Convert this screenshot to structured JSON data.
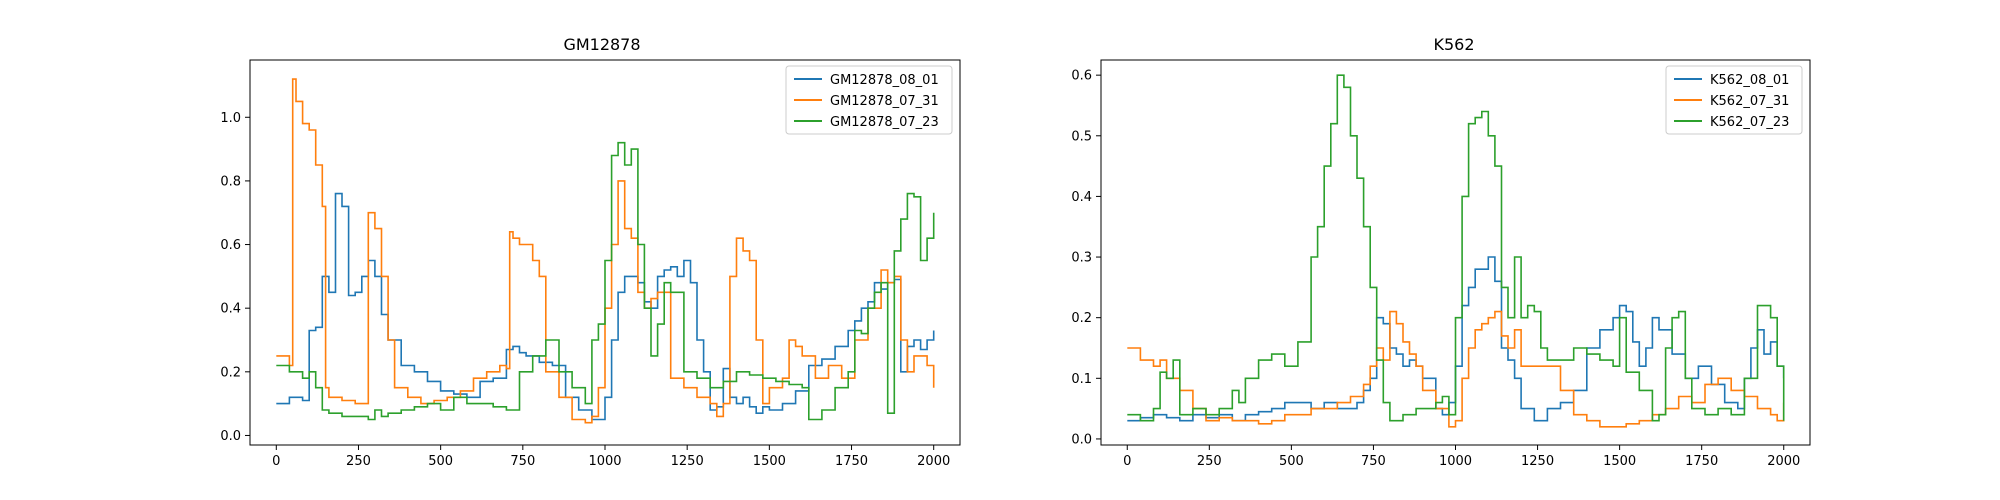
{
  "chart_data": [
    {
      "type": "line",
      "title": "GM12878",
      "xlabel": "",
      "ylabel": "",
      "xlim": [
        -80,
        2080
      ],
      "ylim": [
        -0.03,
        1.18
      ],
      "xticks": [
        0,
        250,
        500,
        750,
        1000,
        1250,
        1500,
        1750,
        2000
      ],
      "xtick_labels": [
        "0",
        "250",
        "500",
        "750",
        "1000",
        "1250",
        "1500",
        "1750",
        "2000"
      ],
      "yticks": [
        0.0,
        0.2,
        0.4,
        0.6,
        0.8,
        1.0
      ],
      "ytick_labels": [
        "0.0",
        "0.2",
        "0.4",
        "0.6",
        "0.8",
        "1.0"
      ],
      "grid": false,
      "legend_position": "top-right",
      "series": [
        {
          "name": "GM12878_08_01",
          "color": "#1f77b4",
          "x": [
            0,
            40,
            80,
            100,
            120,
            140,
            160,
            180,
            200,
            220,
            240,
            260,
            280,
            300,
            320,
            340,
            380,
            420,
            460,
            500,
            540,
            580,
            620,
            660,
            700,
            720,
            740,
            760,
            800,
            840,
            880,
            920,
            960,
            980,
            1000,
            1020,
            1040,
            1060,
            1080,
            1100,
            1120,
            1140,
            1160,
            1180,
            1200,
            1220,
            1240,
            1260,
            1280,
            1300,
            1320,
            1340,
            1360,
            1380,
            1400,
            1420,
            1440,
            1460,
            1480,
            1500,
            1540,
            1580,
            1620,
            1660,
            1700,
            1740,
            1760,
            1780,
            1800,
            1820,
            1840,
            1860,
            1880,
            1900,
            1920,
            1940,
            1960,
            1980,
            2000
          ],
          "y": [
            0.1,
            0.12,
            0.11,
            0.33,
            0.34,
            0.5,
            0.45,
            0.76,
            0.72,
            0.44,
            0.45,
            0.5,
            0.55,
            0.5,
            0.38,
            0.3,
            0.22,
            0.2,
            0.17,
            0.14,
            0.13,
            0.12,
            0.17,
            0.18,
            0.27,
            0.28,
            0.26,
            0.25,
            0.23,
            0.22,
            0.12,
            0.08,
            0.05,
            0.05,
            0.12,
            0.3,
            0.45,
            0.5,
            0.5,
            0.48,
            0.42,
            0.4,
            0.5,
            0.52,
            0.53,
            0.5,
            0.55,
            0.48,
            0.3,
            0.2,
            0.08,
            0.09,
            0.21,
            0.12,
            0.1,
            0.12,
            0.09,
            0.07,
            0.09,
            0.08,
            0.1,
            0.14,
            0.22,
            0.24,
            0.28,
            0.33,
            0.36,
            0.4,
            0.42,
            0.48,
            0.46,
            0.48,
            0.49,
            0.2,
            0.28,
            0.3,
            0.27,
            0.3,
            0.33
          ]
        },
        {
          "name": "GM12878_07_31",
          "color": "#ff7f0e",
          "x": [
            0,
            40,
            50,
            60,
            80,
            100,
            120,
            140,
            150,
            160,
            200,
            240,
            270,
            280,
            300,
            320,
            340,
            360,
            400,
            440,
            480,
            520,
            560,
            600,
            640,
            680,
            700,
            710,
            720,
            740,
            760,
            780,
            800,
            820,
            860,
            900,
            940,
            960,
            980,
            1000,
            1020,
            1040,
            1060,
            1080,
            1100,
            1120,
            1140,
            1160,
            1200,
            1240,
            1280,
            1320,
            1340,
            1360,
            1380,
            1400,
            1420,
            1440,
            1460,
            1480,
            1500,
            1540,
            1560,
            1580,
            1600,
            1640,
            1680,
            1720,
            1760,
            1800,
            1840,
            1860,
            1880,
            1900,
            1920,
            1940,
            1960,
            1980,
            2000
          ],
          "y": [
            0.25,
            0.22,
            1.12,
            1.05,
            0.98,
            0.96,
            0.85,
            0.72,
            0.15,
            0.12,
            0.11,
            0.1,
            0.1,
            0.7,
            0.65,
            0.5,
            0.3,
            0.15,
            0.12,
            0.1,
            0.11,
            0.12,
            0.14,
            0.18,
            0.2,
            0.22,
            0.21,
            0.64,
            0.62,
            0.6,
            0.6,
            0.55,
            0.5,
            0.2,
            0.12,
            0.05,
            0.04,
            0.06,
            0.15,
            0.4,
            0.6,
            0.8,
            0.65,
            0.62,
            0.45,
            0.4,
            0.43,
            0.45,
            0.18,
            0.15,
            0.12,
            0.1,
            0.06,
            0.1,
            0.5,
            0.62,
            0.58,
            0.55,
            0.3,
            0.1,
            0.15,
            0.18,
            0.3,
            0.28,
            0.25,
            0.18,
            0.22,
            0.18,
            0.3,
            0.4,
            0.52,
            0.48,
            0.5,
            0.3,
            0.2,
            0.25,
            0.25,
            0.22,
            0.15
          ]
        },
        {
          "name": "GM12878_07_23",
          "color": "#2ca02c",
          "x": [
            0,
            40,
            80,
            100,
            120,
            140,
            160,
            200,
            240,
            280,
            300,
            320,
            340,
            380,
            420,
            460,
            500,
            540,
            580,
            620,
            660,
            700,
            740,
            780,
            820,
            860,
            900,
            940,
            960,
            980,
            1000,
            1020,
            1040,
            1060,
            1080,
            1100,
            1120,
            1140,
            1160,
            1180,
            1200,
            1240,
            1280,
            1320,
            1360,
            1400,
            1440,
            1480,
            1520,
            1560,
            1600,
            1620,
            1660,
            1700,
            1740,
            1760,
            1780,
            1800,
            1820,
            1840,
            1860,
            1880,
            1900,
            1920,
            1940,
            1960,
            1980,
            2000
          ],
          "y": [
            0.22,
            0.2,
            0.18,
            0.2,
            0.15,
            0.08,
            0.07,
            0.06,
            0.06,
            0.05,
            0.08,
            0.06,
            0.07,
            0.08,
            0.09,
            0.1,
            0.08,
            0.12,
            0.1,
            0.1,
            0.09,
            0.08,
            0.2,
            0.25,
            0.3,
            0.2,
            0.15,
            0.1,
            0.3,
            0.35,
            0.55,
            0.88,
            0.92,
            0.85,
            0.9,
            0.6,
            0.4,
            0.25,
            0.35,
            0.48,
            0.45,
            0.2,
            0.18,
            0.15,
            0.17,
            0.2,
            0.19,
            0.18,
            0.17,
            0.16,
            0.15,
            0.05,
            0.08,
            0.15,
            0.2,
            0.33,
            0.32,
            0.4,
            0.45,
            0.48,
            0.07,
            0.58,
            0.68,
            0.76,
            0.75,
            0.55,
            0.62,
            0.7
          ]
        }
      ]
    },
    {
      "type": "line",
      "title": "K562",
      "xlabel": "",
      "ylabel": "",
      "xlim": [
        -80,
        2080
      ],
      "ylim": [
        -0.01,
        0.625
      ],
      "xticks": [
        0,
        250,
        500,
        750,
        1000,
        1250,
        1500,
        1750,
        2000
      ],
      "xtick_labels": [
        "0",
        "250",
        "500",
        "750",
        "1000",
        "1250",
        "1500",
        "1750",
        "2000"
      ],
      "yticks": [
        0.0,
        0.1,
        0.2,
        0.3,
        0.4,
        0.5,
        0.6
      ],
      "ytick_labels": [
        "0.0",
        "0.1",
        "0.2",
        "0.3",
        "0.4",
        "0.5",
        "0.6"
      ],
      "grid": false,
      "legend_position": "top-right",
      "series": [
        {
          "name": "K562_08_01",
          "color": "#1f77b4",
          "x": [
            0,
            40,
            80,
            120,
            160,
            200,
            240,
            280,
            320,
            360,
            400,
            440,
            480,
            520,
            560,
            600,
            640,
            680,
            700,
            720,
            740,
            760,
            780,
            800,
            820,
            840,
            860,
            880,
            900,
            940,
            960,
            980,
            1000,
            1020,
            1040,
            1060,
            1080,
            1100,
            1120,
            1140,
            1160,
            1180,
            1200,
            1240,
            1280,
            1320,
            1360,
            1400,
            1440,
            1480,
            1500,
            1520,
            1540,
            1560,
            1580,
            1600,
            1620,
            1660,
            1700,
            1740,
            1780,
            1820,
            1860,
            1880,
            1900,
            1920,
            1940,
            1960,
            1980,
            2000
          ],
          "y": [
            0.03,
            0.035,
            0.04,
            0.035,
            0.03,
            0.04,
            0.035,
            0.04,
            0.03,
            0.04,
            0.045,
            0.05,
            0.06,
            0.06,
            0.05,
            0.06,
            0.05,
            0.05,
            0.06,
            0.08,
            0.1,
            0.2,
            0.19,
            0.15,
            0.14,
            0.12,
            0.13,
            0.12,
            0.1,
            0.05,
            0.04,
            0.06,
            0.12,
            0.22,
            0.25,
            0.28,
            0.28,
            0.3,
            0.26,
            0.15,
            0.13,
            0.1,
            0.05,
            0.03,
            0.05,
            0.06,
            0.08,
            0.15,
            0.18,
            0.2,
            0.22,
            0.21,
            0.16,
            0.12,
            0.15,
            0.2,
            0.18,
            0.14,
            0.1,
            0.12,
            0.09,
            0.06,
            0.05,
            0.1,
            0.15,
            0.18,
            0.14,
            0.16,
            0.12,
            0.1
          ]
        },
        {
          "name": "K562_07_31",
          "color": "#ff7f0e",
          "x": [
            0,
            40,
            80,
            100,
            120,
            160,
            200,
            240,
            280,
            320,
            360,
            400,
            440,
            480,
            520,
            560,
            600,
            640,
            680,
            720,
            740,
            760,
            780,
            800,
            820,
            840,
            860,
            880,
            900,
            940,
            980,
            1000,
            1020,
            1040,
            1060,
            1080,
            1100,
            1120,
            1140,
            1160,
            1180,
            1200,
            1240,
            1280,
            1320,
            1360,
            1400,
            1440,
            1480,
            1520,
            1560,
            1600,
            1640,
            1680,
            1720,
            1760,
            1800,
            1840,
            1880,
            1920,
            1960,
            1980,
            2000
          ],
          "y": [
            0.15,
            0.13,
            0.12,
            0.13,
            0.1,
            0.08,
            0.05,
            0.03,
            0.035,
            0.03,
            0.03,
            0.025,
            0.03,
            0.04,
            0.04,
            0.05,
            0.05,
            0.06,
            0.07,
            0.09,
            0.12,
            0.15,
            0.13,
            0.21,
            0.19,
            0.16,
            0.14,
            0.12,
            0.08,
            0.05,
            0.02,
            0.03,
            0.1,
            0.15,
            0.18,
            0.19,
            0.2,
            0.21,
            0.17,
            0.15,
            0.18,
            0.12,
            0.12,
            0.12,
            0.08,
            0.04,
            0.03,
            0.02,
            0.02,
            0.025,
            0.03,
            0.04,
            0.05,
            0.07,
            0.06,
            0.09,
            0.1,
            0.08,
            0.07,
            0.05,
            0.04,
            0.03,
            0.06
          ]
        },
        {
          "name": "K562_07_23",
          "color": "#2ca02c",
          "x": [
            0,
            40,
            80,
            100,
            120,
            140,
            160,
            200,
            240,
            280,
            320,
            340,
            360,
            380,
            400,
            440,
            480,
            520,
            560,
            580,
            600,
            620,
            640,
            660,
            680,
            700,
            720,
            740,
            760,
            780,
            800,
            840,
            880,
            920,
            940,
            960,
            980,
            1000,
            1020,
            1040,
            1060,
            1080,
            1100,
            1120,
            1140,
            1160,
            1180,
            1200,
            1220,
            1240,
            1260,
            1280,
            1320,
            1360,
            1400,
            1440,
            1480,
            1500,
            1520,
            1560,
            1600,
            1620,
            1640,
            1660,
            1680,
            1700,
            1720,
            1760,
            1800,
            1840,
            1880,
            1920,
            1960,
            1980,
            2000
          ],
          "y": [
            0.04,
            0.03,
            0.05,
            0.11,
            0.1,
            0.13,
            0.04,
            0.05,
            0.04,
            0.05,
            0.08,
            0.06,
            0.1,
            0.1,
            0.13,
            0.14,
            0.12,
            0.16,
            0.3,
            0.35,
            0.45,
            0.52,
            0.6,
            0.58,
            0.5,
            0.43,
            0.35,
            0.25,
            0.13,
            0.06,
            0.03,
            0.04,
            0.05,
            0.05,
            0.06,
            0.07,
            0.04,
            0.2,
            0.4,
            0.52,
            0.53,
            0.54,
            0.5,
            0.45,
            0.25,
            0.2,
            0.3,
            0.2,
            0.22,
            0.21,
            0.15,
            0.13,
            0.13,
            0.15,
            0.14,
            0.13,
            0.12,
            0.2,
            0.11,
            0.08,
            0.03,
            0.04,
            0.15,
            0.2,
            0.21,
            0.1,
            0.05,
            0.04,
            0.05,
            0.04,
            0.1,
            0.22,
            0.2,
            0.12,
            0.03
          ]
        }
      ]
    }
  ]
}
